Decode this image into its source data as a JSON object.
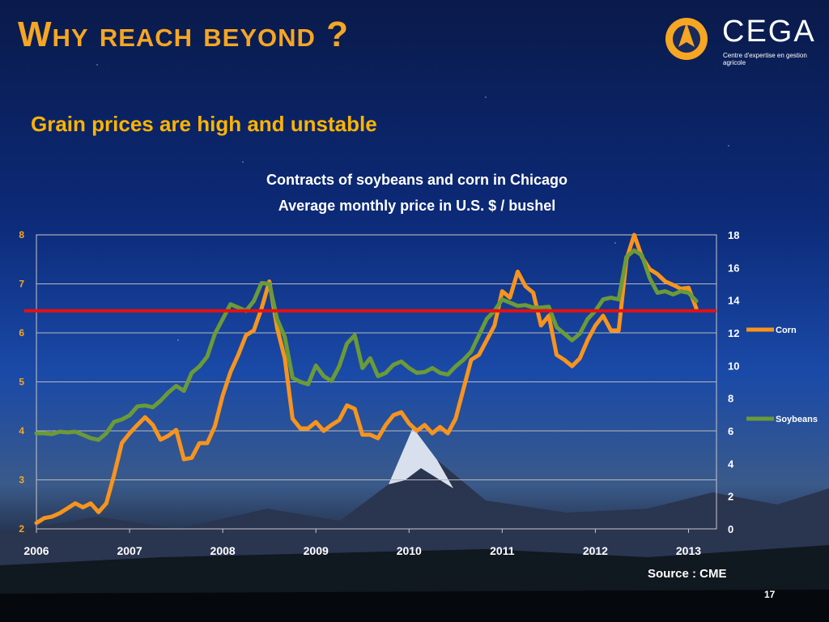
{
  "slide": {
    "title": "Why reach beyond ?",
    "subtitle": "Grain prices are high and unstable",
    "chart_title_line1": "Contracts of soybeans and corn in Chicago",
    "chart_title_line2": "Average monthly price in U.S. $ / bushel",
    "source": "Source : CME",
    "page_number": "17",
    "logo": {
      "name": "CEGA",
      "tagline": "Centre d'expertise en gestion agricole"
    }
  },
  "chart_data": {
    "type": "line",
    "x_tick_labels": [
      "2006",
      "2007",
      "2008",
      "2009",
      "2010",
      "2011",
      "2012",
      "2013"
    ],
    "x_start": 2006,
    "xlim": [
      2006,
      2013.3
    ],
    "left_axis": {
      "ylim": [
        2,
        8
      ],
      "ticks": [
        "2",
        "3",
        "4",
        "5",
        "6",
        "7",
        "8"
      ],
      "series": "Corn"
    },
    "right_axis": {
      "ylim": [
        0,
        18
      ],
      "ticks": [
        "0",
        "2",
        "4",
        "6",
        "8",
        "10",
        "12",
        "14",
        "16",
        "18"
      ],
      "series": "Soybeans"
    },
    "reference_line": {
      "value": 6.45,
      "axis": "left",
      "color": "#e81010"
    },
    "series": [
      {
        "name": "Corn",
        "axis": "left",
        "color": "#f7941d",
        "values": [
          2.12,
          2.22,
          2.25,
          2.32,
          2.42,
          2.52,
          2.44,
          2.52,
          2.34,
          2.52,
          3.1,
          3.75,
          3.95,
          4.12,
          4.28,
          4.12,
          3.82,
          3.9,
          4.02,
          3.42,
          3.45,
          3.75,
          3.75,
          4.1,
          4.72,
          5.2,
          5.55,
          5.95,
          6.05,
          6.5,
          7.05,
          6.1,
          5.48,
          4.25,
          4.05,
          4.05,
          4.18,
          4.0,
          4.12,
          4.22,
          4.52,
          4.45,
          3.92,
          3.92,
          3.85,
          4.12,
          4.32,
          4.38,
          4.15,
          4.0,
          4.12,
          3.95,
          4.08,
          3.95,
          4.25,
          4.85,
          5.45,
          5.55,
          5.85,
          6.15,
          6.85,
          6.72,
          7.25,
          6.95,
          6.82,
          6.15,
          6.35,
          5.55,
          5.45,
          5.32,
          5.48,
          5.85,
          6.15,
          6.35,
          6.05,
          6.05,
          7.5,
          8.0,
          7.55,
          7.3,
          7.2,
          7.05,
          6.98,
          6.9,
          6.92,
          6.5
        ]
      },
      {
        "name": "Soybeans",
        "axis": "right",
        "color": "#6b9a38",
        "values": [
          5.85,
          5.85,
          5.8,
          5.95,
          5.9,
          5.95,
          5.75,
          5.55,
          5.45,
          5.85,
          6.55,
          6.7,
          6.95,
          7.5,
          7.55,
          7.45,
          7.85,
          8.35,
          8.75,
          8.45,
          9.55,
          9.95,
          10.55,
          11.95,
          12.85,
          13.75,
          13.55,
          13.35,
          13.95,
          15.05,
          15.0,
          12.85,
          11.75,
          9.25,
          9.0,
          8.85,
          10.0,
          9.35,
          9.05,
          9.95,
          11.35,
          11.85,
          9.85,
          10.45,
          9.35,
          9.55,
          10.05,
          10.25,
          9.85,
          9.55,
          9.6,
          9.85,
          9.55,
          9.45,
          9.95,
          10.35,
          10.85,
          11.85,
          12.85,
          13.35,
          14.05,
          13.85,
          13.65,
          13.7,
          13.55,
          13.55,
          13.6,
          12.35,
          11.95,
          11.55,
          11.95,
          12.85,
          13.35,
          14.05,
          14.15,
          14.05,
          16.65,
          17.05,
          16.75,
          15.35,
          14.45,
          14.55,
          14.35,
          14.55,
          14.45,
          13.95
        ]
      }
    ]
  }
}
